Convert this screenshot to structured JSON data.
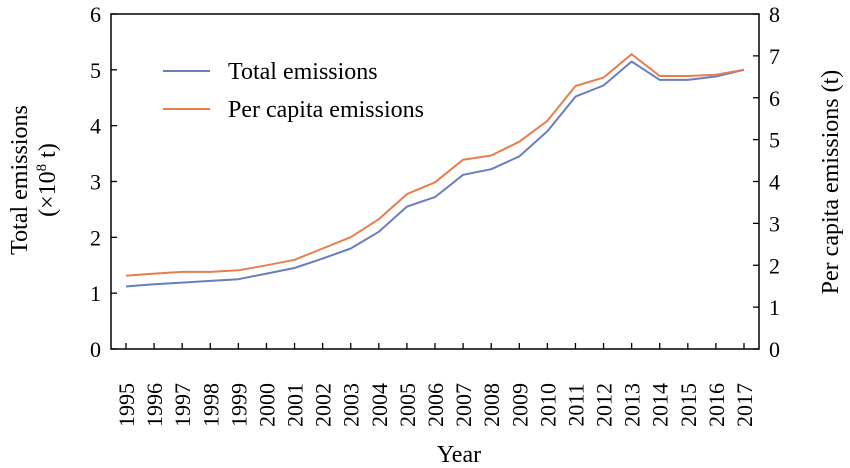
{
  "chart_data": {
    "type": "line",
    "x": [
      "1995",
      "1996",
      "1997",
      "1998",
      "1999",
      "2000",
      "2001",
      "2002",
      "2003",
      "2004",
      "2005",
      "2006",
      "2007",
      "2008",
      "2009",
      "2010",
      "2011",
      "2012",
      "2013",
      "2014",
      "2015",
      "2016",
      "2017"
    ],
    "xlabel": "Year",
    "ylabel_left_line1": "Total emissions",
    "ylabel_left_line2_prefix": "(×10",
    "ylabel_left_line2_sup": "8",
    "ylabel_left_line2_suffix": " t)",
    "ylabel_right": "Per capita emissions (t)",
    "ylim_left": [
      0,
      6
    ],
    "ylim_right": [
      0,
      8
    ],
    "yticks_left": [
      "0",
      "1",
      "2",
      "3",
      "4",
      "5",
      "6"
    ],
    "yticks_right": [
      "0",
      "1",
      "2",
      "3",
      "4",
      "5",
      "6",
      "7",
      "8"
    ],
    "series": [
      {
        "name": "Total emissions",
        "axis": "left",
        "color": "#6a7dbf",
        "values": [
          1.12,
          1.16,
          1.19,
          1.22,
          1.25,
          1.35,
          1.45,
          1.62,
          1.8,
          2.1,
          2.55,
          2.72,
          3.12,
          3.22,
          3.45,
          3.9,
          4.52,
          4.72,
          5.15,
          4.82,
          4.82,
          4.88,
          5.0
        ]
      },
      {
        "name": "Per capita emissions",
        "axis": "right",
        "color": "#e87e4e",
        "values": [
          1.75,
          1.8,
          1.84,
          1.84,
          1.88,
          2.0,
          2.13,
          2.4,
          2.67,
          3.1,
          3.7,
          3.98,
          4.52,
          4.62,
          4.95,
          5.45,
          6.28,
          6.48,
          7.04,
          6.52,
          6.52,
          6.55,
          6.67
        ]
      }
    ],
    "legend_position": "upper-left"
  }
}
